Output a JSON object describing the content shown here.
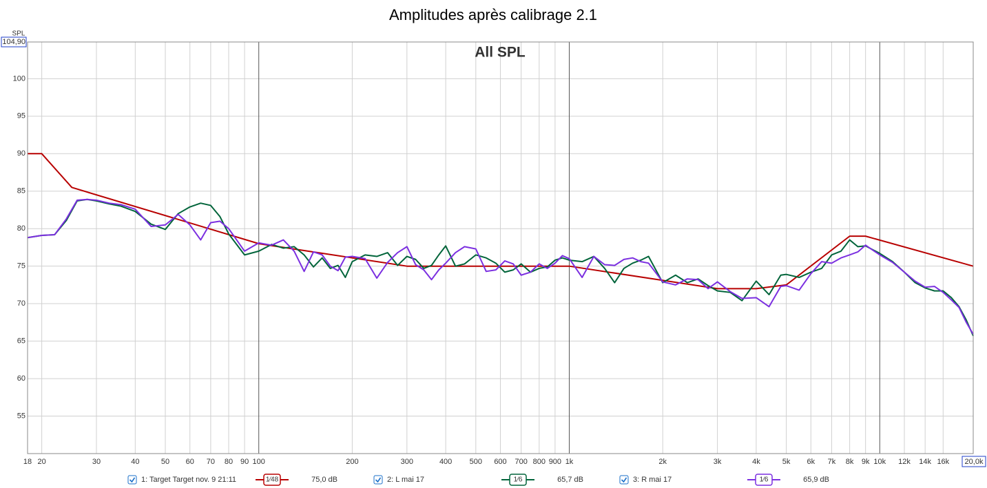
{
  "chart_data": {
    "type": "line",
    "title": "Amplitudes après calibrage 2.1",
    "subtitle": "All SPL",
    "y_label": "SPL",
    "xscale": "log",
    "grid": true,
    "xlim": [
      18,
      20000
    ],
    "ylim": [
      50,
      104.9
    ],
    "yticks": [
      55,
      60,
      65,
      70,
      75,
      80,
      85,
      90,
      95,
      100,
      {
        "value": 104.9,
        "label": "104,90"
      }
    ],
    "xticks": [
      18,
      20,
      30,
      40,
      50,
      60,
      70,
      80,
      90,
      100,
      200,
      300,
      400,
      500,
      600,
      700,
      800,
      900,
      {
        "value": 1000,
        "label": "1k"
      },
      {
        "value": 2000,
        "label": "2k"
      },
      {
        "value": 3000,
        "label": "3k"
      },
      {
        "value": 4000,
        "label": "4k"
      },
      {
        "value": 5000,
        "label": "5k"
      },
      {
        "value": 6000,
        "label": "6k"
      },
      {
        "value": 7000,
        "label": "7k"
      },
      {
        "value": 8000,
        "label": "8k"
      },
      {
        "value": 9000,
        "label": "9k"
      },
      {
        "value": 10000,
        "label": "10k"
      },
      {
        "value": 12000,
        "label": "12k"
      },
      {
        "value": 14000,
        "label": "14k"
      },
      {
        "value": 16000,
        "label": "16k"
      },
      {
        "value": 20000,
        "label": "20,0k"
      }
    ],
    "series": [
      {
        "name": "1: Target Target nov. 9 21:11",
        "color": "#b80000",
        "smoothing": "1⁄48",
        "readout": "75,0 dB",
        "x": [
          18,
          20,
          25,
          100,
          300,
          1000,
          3000,
          4000,
          5000,
          8000,
          9000,
          20000
        ],
        "values": [
          90,
          90,
          85.5,
          78,
          75,
          75,
          72,
          72,
          72.5,
          79,
          79,
          75
        ]
      },
      {
        "name": "2: L mai 17",
        "color": "#00643a",
        "smoothing": "1⁄6",
        "readout": "65,7 dB",
        "x": [
          18,
          20,
          22,
          24,
          26,
          28,
          30,
          33,
          36,
          40,
          45,
          50,
          55,
          60,
          65,
          70,
          75,
          80,
          90,
          100,
          110,
          120,
          130,
          140,
          150,
          160,
          170,
          180,
          190,
          200,
          220,
          240,
          260,
          280,
          300,
          320,
          340,
          360,
          380,
          400,
          430,
          460,
          500,
          540,
          580,
          620,
          660,
          700,
          750,
          800,
          850,
          900,
          950,
          1000,
          1100,
          1200,
          1300,
          1400,
          1500,
          1600,
          1700,
          1800,
          2000,
          2200,
          2400,
          2600,
          2800,
          3000,
          3300,
          3600,
          4000,
          4400,
          4800,
          5000,
          5500,
          6000,
          6500,
          7000,
          7500,
          8000,
          8500,
          9000,
          10000,
          11000,
          12000,
          13000,
          14000,
          15000,
          16000,
          17000,
          18000,
          19000,
          20000
        ],
        "values": [
          78.8,
          79.1,
          79.2,
          81.1,
          83.7,
          83.9,
          83.7,
          83.3,
          83.0,
          82.3,
          80.6,
          79.9,
          82.0,
          82.9,
          83.4,
          83.1,
          81.6,
          79.3,
          76.5,
          77.0,
          77.9,
          77.4,
          77.6,
          76.5,
          74.9,
          76.1,
          74.7,
          75.1,
          73.5,
          75.6,
          76.5,
          76.3,
          76.8,
          75.1,
          76.3,
          75.9,
          74.7,
          75.1,
          76.5,
          77.7,
          75.0,
          75.3,
          76.5,
          76.1,
          75.4,
          74.2,
          74.5,
          75.3,
          74.2,
          74.7,
          74.9,
          75.8,
          76.1,
          75.8,
          75.6,
          76.3,
          74.7,
          72.8,
          74.7,
          75.4,
          75.8,
          76.3,
          72.8,
          73.8,
          72.8,
          73.3,
          72.4,
          71.7,
          71.5,
          70.4,
          73.0,
          71.2,
          73.8,
          73.9,
          73.5,
          74.2,
          74.7,
          76.5,
          77.0,
          78.5,
          77.6,
          77.7,
          76.7,
          75.6,
          74.2,
          72.8,
          72.1,
          71.7,
          71.7,
          70.8,
          69.6,
          67.8,
          65.7
        ]
      },
      {
        "name": "3: R mai 17",
        "color": "#7b2fe0",
        "smoothing": "1⁄6",
        "readout": "65,9 dB",
        "x": [
          18,
          20,
          22,
          24,
          26,
          28,
          30,
          33,
          36,
          40,
          45,
          50,
          55,
          60,
          65,
          70,
          75,
          80,
          90,
          100,
          110,
          120,
          130,
          140,
          150,
          160,
          170,
          180,
          190,
          200,
          220,
          240,
          260,
          280,
          300,
          320,
          340,
          360,
          380,
          400,
          430,
          460,
          500,
          540,
          580,
          620,
          660,
          700,
          750,
          800,
          850,
          900,
          950,
          1000,
          1100,
          1200,
          1300,
          1400,
          1500,
          1600,
          1700,
          1800,
          2000,
          2200,
          2400,
          2600,
          2800,
          3000,
          3300,
          3600,
          4000,
          4400,
          4800,
          5000,
          5500,
          6000,
          6500,
          7000,
          7500,
          8000,
          8500,
          9000,
          10000,
          11000,
          12000,
          13000,
          14000,
          15000,
          16000,
          17000,
          18000,
          19000,
          20000
        ],
        "values": [
          78.8,
          79.1,
          79.2,
          81.3,
          83.8,
          83.9,
          83.8,
          83.4,
          83.2,
          82.6,
          80.3,
          80.5,
          81.9,
          80.5,
          78.5,
          80.8,
          81.0,
          80.0,
          77.0,
          78.1,
          77.8,
          78.5,
          77.0,
          74.3,
          76.9,
          76.5,
          75.0,
          74.4,
          76.2,
          76.3,
          76.0,
          73.4,
          75.5,
          76.8,
          77.6,
          75.2,
          74.5,
          73.2,
          74.5,
          75.4,
          76.8,
          77.6,
          77.3,
          74.3,
          74.5,
          75.7,
          75.3,
          73.8,
          74.2,
          75.3,
          74.7,
          75.4,
          76.4,
          76.0,
          73.5,
          76.3,
          75.2,
          75.1,
          75.9,
          76.1,
          75.6,
          75.4,
          72.9,
          72.5,
          73.3,
          73.2,
          72.0,
          72.9,
          71.6,
          70.7,
          70.8,
          69.6,
          72.3,
          72.4,
          71.8,
          74.0,
          75.6,
          75.4,
          76.1,
          76.5,
          76.9,
          77.8,
          76.5,
          75.5,
          74.2,
          73.0,
          72.2,
          72.3,
          71.5,
          70.5,
          69.5,
          67.5,
          65.9
        ]
      }
    ]
  }
}
